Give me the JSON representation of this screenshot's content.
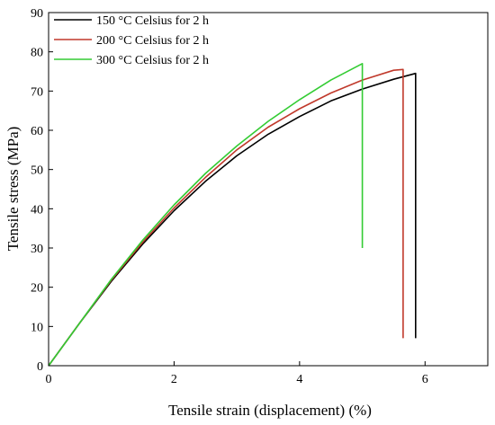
{
  "chart_data": {
    "type": "line",
    "title": "",
    "xlabel": "Tensile strain (displacement) (%)",
    "ylabel": "Tensile stress (MPa)",
    "xlim": [
      0,
      7
    ],
    "ylim": [
      0,
      90
    ],
    "xticks": [
      0,
      2,
      4,
      6
    ],
    "yticks": [
      0,
      10,
      20,
      30,
      40,
      50,
      60,
      70,
      80,
      90
    ],
    "grid": false,
    "legend": "top-left",
    "series": [
      {
        "name": "150 °C Celsius for 2 h",
        "color": "#000000",
        "x": [
          0,
          0.5,
          1.0,
          1.5,
          2.0,
          2.5,
          3.0,
          3.5,
          4.0,
          4.5,
          5.0,
          5.5,
          5.85,
          5.85
        ],
        "y": [
          0,
          11.0,
          21.5,
          31.0,
          39.5,
          47.0,
          53.5,
          59.0,
          63.5,
          67.5,
          70.5,
          73.0,
          74.5,
          7.0
        ]
      },
      {
        "name": "200 °C Celsius for 2 h",
        "color": "#c0392b",
        "x": [
          0,
          0.5,
          1.0,
          1.5,
          2.0,
          2.5,
          3.0,
          3.5,
          4.0,
          4.5,
          5.0,
          5.5,
          5.65,
          5.65
        ],
        "y": [
          0,
          11.0,
          21.8,
          31.5,
          40.2,
          48.0,
          55.0,
          60.8,
          65.5,
          69.5,
          72.8,
          75.3,
          75.5,
          7.0
        ]
      },
      {
        "name": "300 °C Celsius for 2 h",
        "color": "#33cc33",
        "x": [
          0,
          0.5,
          1.0,
          1.5,
          2.0,
          2.5,
          3.0,
          3.5,
          4.0,
          4.5,
          5.0,
          5.0
        ],
        "y": [
          0,
          11.0,
          22.0,
          32.0,
          41.0,
          49.0,
          56.0,
          62.3,
          67.8,
          72.8,
          77.0,
          30.0
        ]
      }
    ]
  }
}
